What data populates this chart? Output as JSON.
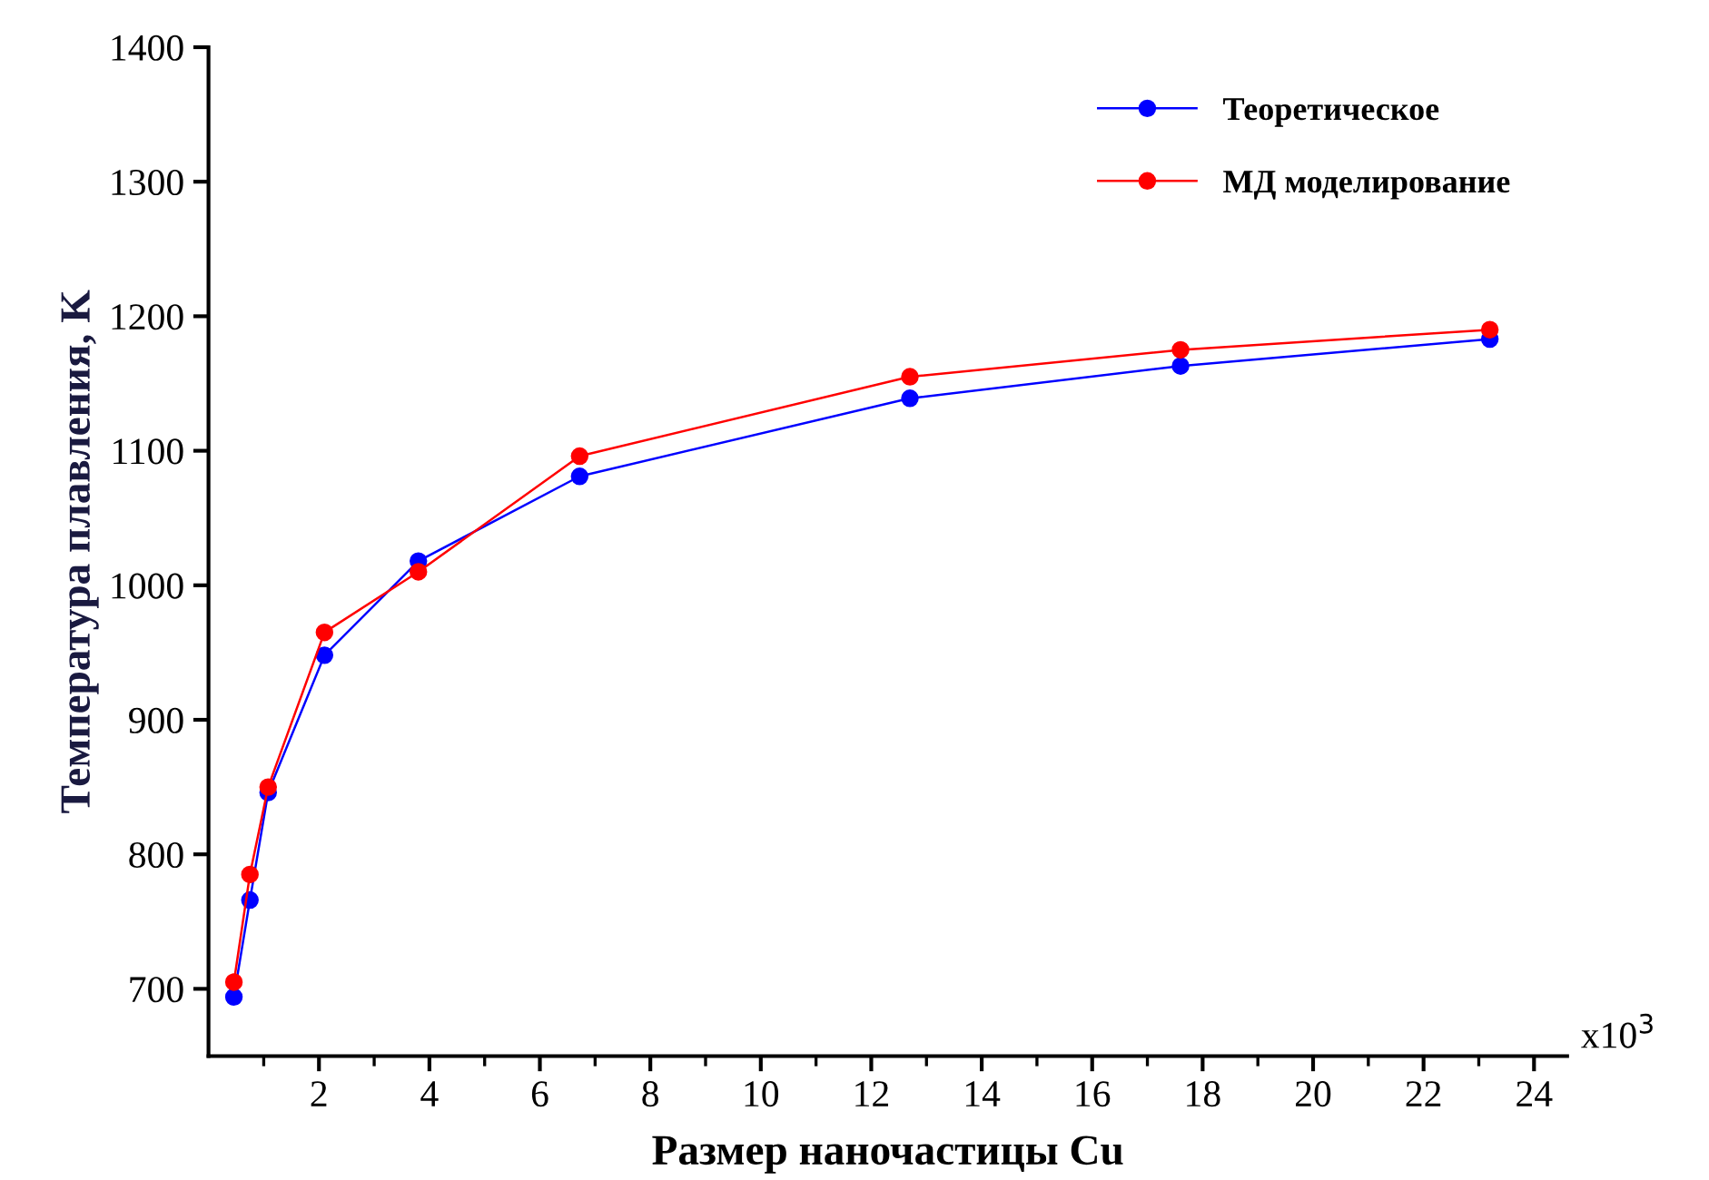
{
  "chart_data": {
    "type": "line",
    "xlabel": "Размер наночастицы Cu",
    "ylabel": "Температура плавления, K",
    "x": [
      0.46,
      0.75,
      1.08,
      2.1,
      3.8,
      6.72,
      12.7,
      17.6,
      23.2
    ],
    "series": [
      {
        "name": "Теоретическое",
        "color": "#0000ff",
        "values": [
          694,
          766,
          846,
          948,
          1018,
          1081,
          1139,
          1163,
          1183
        ]
      },
      {
        "name": "МД моделирование",
        "color": "#ff0000",
        "values": [
          705,
          785,
          850,
          965,
          1010,
          1096,
          1155,
          1175,
          1190
        ]
      }
    ],
    "xlim": [
      0,
      24.6
    ],
    "xticks": [
      2,
      4,
      6,
      8,
      10,
      12,
      14,
      16,
      18,
      20,
      22,
      24
    ],
    "ylim": [
      650,
      1400
    ],
    "yticks": [
      700,
      800,
      900,
      1000,
      1100,
      1200,
      1300,
      1400
    ],
    "annotations": [
      "x10$^{3}$"
    ],
    "marker": "circle",
    "line_style": "solid",
    "grid": false,
    "legend": "top right"
  }
}
